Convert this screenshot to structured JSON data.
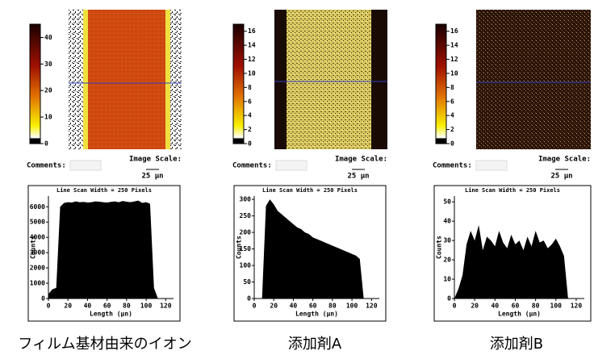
{
  "chart_data": [
    {
      "type": "area",
      "title": "Line Scan Width = 250 Pixels",
      "xlabel": "Length (μn)",
      "ylabel": "Counts",
      "comments_label": "Comments:",
      "scale_title": "Image Scale:",
      "scale_value": "25 μn",
      "caption": "フィルム基材由来のイオン",
      "colorbar_lim": [
        0,
        45
      ],
      "colorbar_ticks": [
        0,
        10,
        20,
        30,
        40
      ],
      "color": "#000000",
      "x": [
        0,
        4,
        8,
        12,
        16,
        20,
        24,
        28,
        32,
        36,
        40,
        44,
        48,
        52,
        56,
        60,
        64,
        68,
        72,
        76,
        80,
        84,
        88,
        92,
        96,
        100,
        104,
        108,
        112,
        116,
        120,
        124
      ],
      "values": [
        300,
        600,
        700,
        6000,
        6250,
        6300,
        6280,
        6350,
        6300,
        6320,
        6280,
        6300,
        6350,
        6330,
        6300,
        6280,
        6320,
        6350,
        6300,
        6380,
        6330,
        6300,
        6350,
        6400,
        6250,
        6300,
        6200,
        700,
        0,
        0,
        0,
        0
      ],
      "xlim": [
        0,
        128
      ],
      "xticks": [
        0,
        20,
        40,
        60,
        80,
        100,
        120
      ],
      "ylim": [
        0,
        6700
      ],
      "yticks": [
        0,
        1000,
        2000,
        3000,
        4000,
        5000,
        6000
      ]
    },
    {
      "type": "area",
      "title": "Line Scan Width = 250 Pixels",
      "xlabel": "Length (μn)",
      "ylabel": "Counts",
      "comments_label": "Comments:",
      "scale_title": "Image Scale:",
      "scale_value": "25 μn",
      "caption": "添加剤A",
      "colorbar_lim": [
        0,
        17
      ],
      "colorbar_ticks": [
        0,
        2,
        4,
        6,
        8,
        10,
        12,
        14,
        16
      ],
      "color": "#000000",
      "x": [
        0,
        4,
        8,
        12,
        16,
        20,
        24,
        28,
        32,
        36,
        40,
        44,
        48,
        52,
        56,
        60,
        64,
        68,
        72,
        76,
        80,
        84,
        88,
        92,
        96,
        100,
        104,
        108,
        112,
        116,
        120,
        124
      ],
      "values": [
        0,
        0,
        0,
        280,
        300,
        285,
        265,
        255,
        245,
        235,
        225,
        215,
        210,
        200,
        195,
        185,
        180,
        175,
        170,
        165,
        160,
        155,
        150,
        145,
        140,
        135,
        130,
        120,
        0,
        0,
        0,
        0
      ],
      "xlim": [
        0,
        128
      ],
      "xticks": [
        0,
        20,
        40,
        60,
        80,
        100,
        120
      ],
      "ylim": [
        0,
        310
      ],
      "yticks": [
        0,
        50,
        100,
        150,
        200,
        250,
        300
      ]
    },
    {
      "type": "area",
      "title": "Line Scan Width = 250 Pixels",
      "xlabel": "Length (μn)",
      "ylabel": "Counts",
      "comments_label": "Comments:",
      "scale_title": "Image Scale:",
      "scale_value": "25 μn",
      "caption": "添加剤B",
      "colorbar_lim": [
        0,
        17
      ],
      "colorbar_ticks": [
        0,
        2,
        4,
        6,
        8,
        10,
        12,
        14,
        16
      ],
      "color": "#000000",
      "x": [
        0,
        4,
        8,
        12,
        16,
        20,
        24,
        28,
        32,
        36,
        40,
        44,
        48,
        52,
        56,
        60,
        64,
        68,
        72,
        76,
        80,
        84,
        88,
        92,
        96,
        100,
        104,
        108,
        112,
        116,
        120,
        124
      ],
      "values": [
        0,
        5,
        12,
        28,
        35,
        30,
        38,
        25,
        32,
        30,
        27,
        35,
        29,
        26,
        33,
        28,
        30,
        25,
        32,
        27,
        35,
        29,
        30,
        26,
        28,
        31,
        27,
        22,
        0,
        0,
        0,
        0
      ],
      "xlim": [
        0,
        128
      ],
      "xticks": [
        0,
        20,
        40,
        60,
        80,
        100,
        120
      ],
      "ylim": [
        0,
        53
      ],
      "yticks": [
        0,
        10,
        20,
        30,
        40,
        50
      ]
    }
  ]
}
